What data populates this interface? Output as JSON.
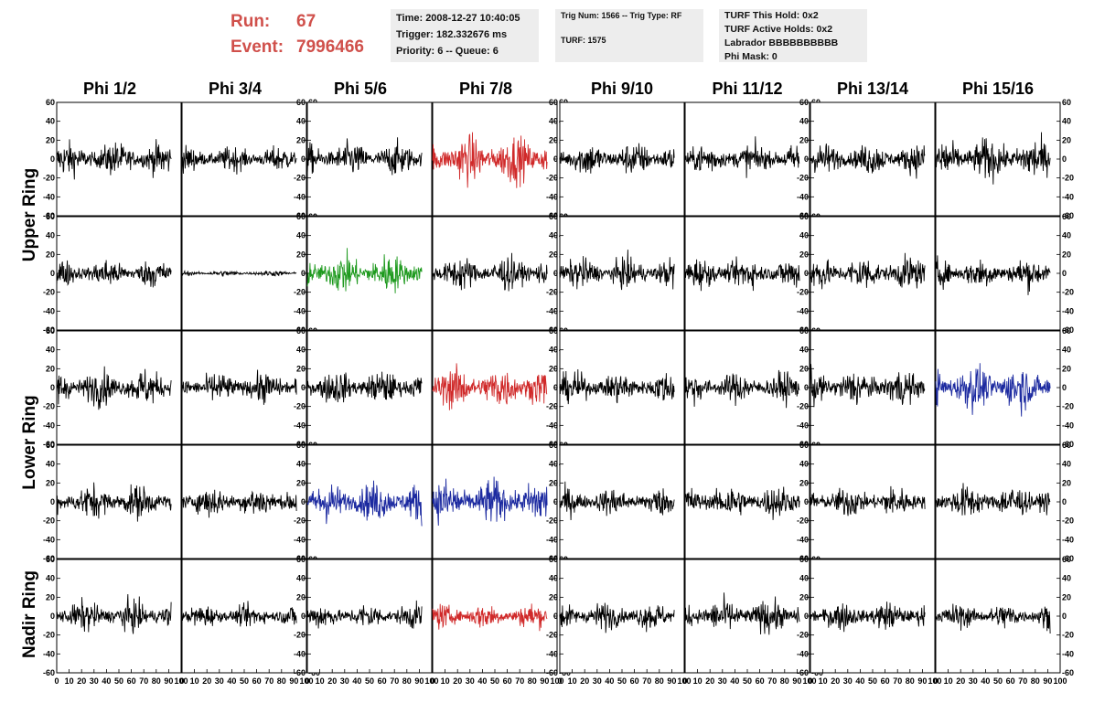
{
  "header": {
    "run_label": "Run:",
    "run_value": "67",
    "event_label": "Event:",
    "event_value": "7996466",
    "time": "Time: 2008-12-27 10:40:05",
    "trigger": "Trigger: 182.332676 ms",
    "priority": "Priority: 6 -- Queue: 6",
    "trig_num": "Trig Num: 1566 -- Trig Type: RF",
    "turf": "TURF: 1575",
    "turf_hold": "TURF This Hold: 0x2",
    "turf_active": "TURF Active Holds: 0x2",
    "labrador": "Labrador BBBBBBBBBB",
    "phi_mask": "Phi Mask: 0"
  },
  "columns": [
    "Phi 1/2",
    "Phi 3/4",
    "Phi 5/6",
    "Phi 7/8",
    "Phi 9/10",
    "Phi 11/12",
    "Phi 13/14",
    "Phi 15/16"
  ],
  "rings": [
    "Upper Ring",
    "Lower Ring",
    "Nadir Ring"
  ],
  "colors": {
    "black": "#000000",
    "red": "#d02a2a",
    "green": "#1f9a1f",
    "blue": "#1c2aa0"
  },
  "chart_data": {
    "type": "line",
    "rows": 5,
    "cols": 8,
    "xlim": [
      0,
      100
    ],
    "ylim": [
      -60,
      60
    ],
    "y_ticks": [
      -60,
      -40,
      -20,
      0,
      20,
      40,
      60
    ],
    "x_ticks": [
      0,
      10,
      20,
      30,
      40,
      50,
      60,
      70,
      80,
      90,
      100
    ],
    "panel_colors": [
      [
        "black",
        "black",
        "black",
        "red",
        "black",
        "black",
        "black",
        "black"
      ],
      [
        "black",
        "black",
        "green",
        "black",
        "black",
        "black",
        "black",
        "black"
      ],
      [
        "black",
        "black",
        "black",
        "red",
        "black",
        "black",
        "black",
        "blue"
      ],
      [
        "black",
        "black",
        "blue",
        "blue",
        "black",
        "black",
        "black",
        "black"
      ],
      [
        "black",
        "black",
        "black",
        "red",
        "black",
        "black",
        "black",
        "black"
      ]
    ],
    "panel_amplitudes": [
      [
        12,
        9,
        12,
        17,
        12,
        11,
        11,
        15
      ],
      [
        10,
        2,
        14,
        12,
        11,
        11,
        12,
        11
      ],
      [
        13,
        11,
        12,
        15,
        11,
        11,
        13,
        16
      ],
      [
        12,
        11,
        14,
        16,
        10,
        12,
        11,
        12
      ],
      [
        11,
        8,
        9,
        9,
        10,
        12,
        10,
        9
      ]
    ]
  }
}
